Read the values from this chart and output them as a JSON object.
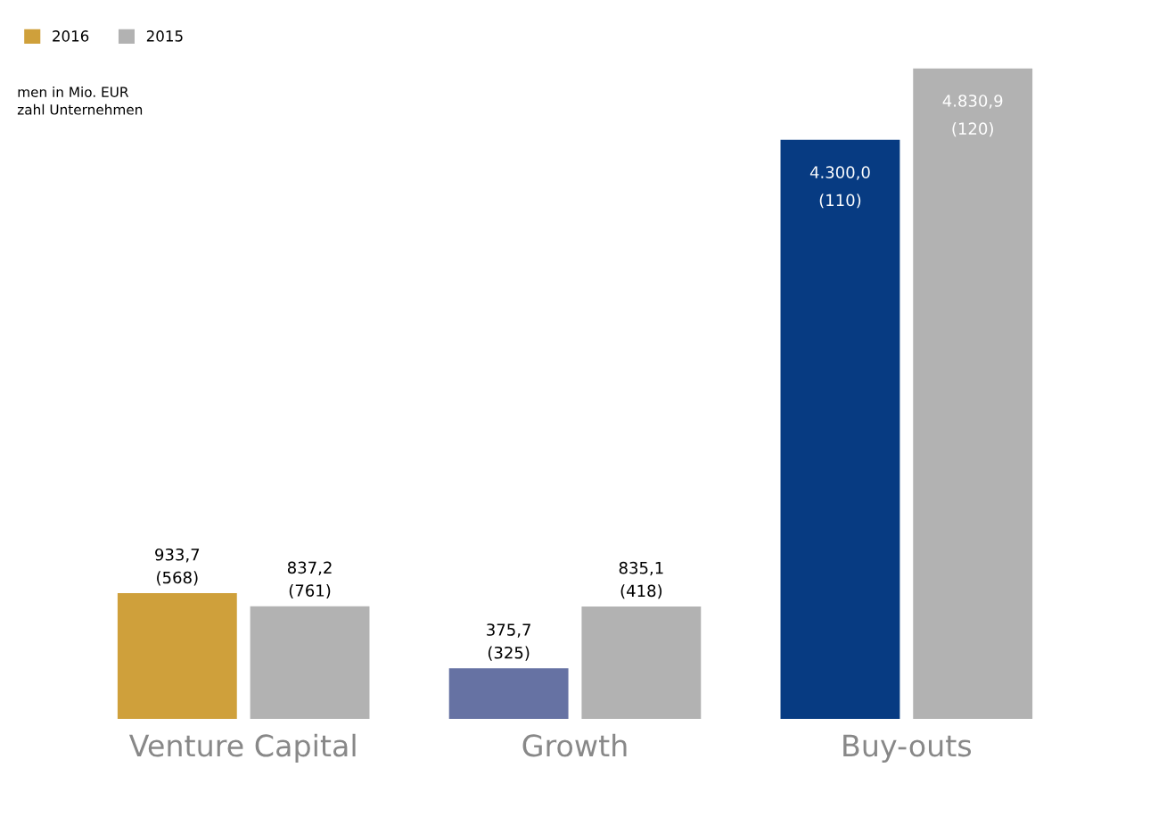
{
  "chart_data": {
    "type": "bar",
    "categories": [
      "Venture Capital",
      "Growth",
      "Buy-outs"
    ],
    "series": [
      {
        "name": "2016",
        "color": "#cfa03b",
        "colors": [
          "#cfa03b",
          "#6672a3",
          "#073b82"
        ],
        "values": [
          933.7,
          375.7,
          4300.0
        ],
        "value_labels": [
          "933,7\n(568)",
          "375,7\n(325)",
          "4.300,0\n(110)"
        ]
      },
      {
        "name": "2015",
        "color": "#b2b2b2",
        "colors": [
          "#b2b2b2",
          "#b2b2b2",
          "#b2b2b2"
        ],
        "values": [
          837.2,
          835.1,
          4830.9
        ],
        "value_labels": [
          "837,2\n(761)",
          "835,1\n(418)",
          "4.830,9\n(120)"
        ]
      }
    ],
    "annotations": [
      "men in Mio. EUR",
      "zahl Unternehmen"
    ],
    "legend": "top left",
    "grid": false
  }
}
